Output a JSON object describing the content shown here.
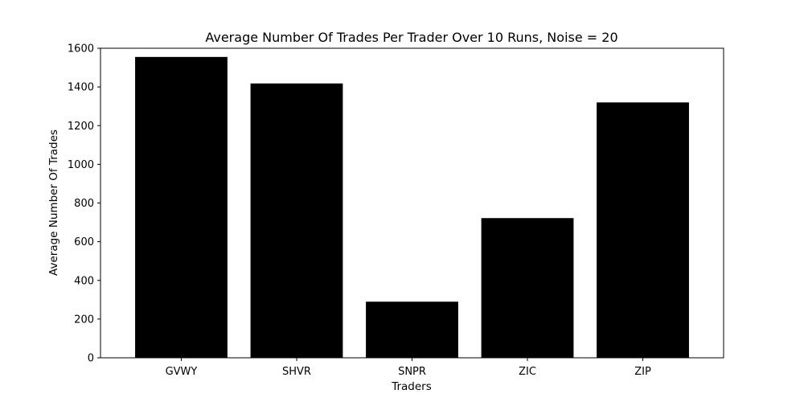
{
  "chart_data": {
    "type": "bar",
    "title": "Average Number Of Trades Per Trader Over 10 Runs, Noise = 20",
    "xlabel": "Traders",
    "ylabel": "Average Number Of Trades",
    "categories": [
      "GVWY",
      "SHVR",
      "SNPR",
      "ZIC",
      "ZIP"
    ],
    "values": [
      1555,
      1418,
      290,
      722,
      1320
    ],
    "ylim": [
      0,
      1600
    ],
    "yticks": [
      0,
      200,
      400,
      600,
      800,
      1000,
      1200,
      1400,
      1600
    ],
    "bar_color": "#000000",
    "grid": false,
    "legend": "none"
  }
}
